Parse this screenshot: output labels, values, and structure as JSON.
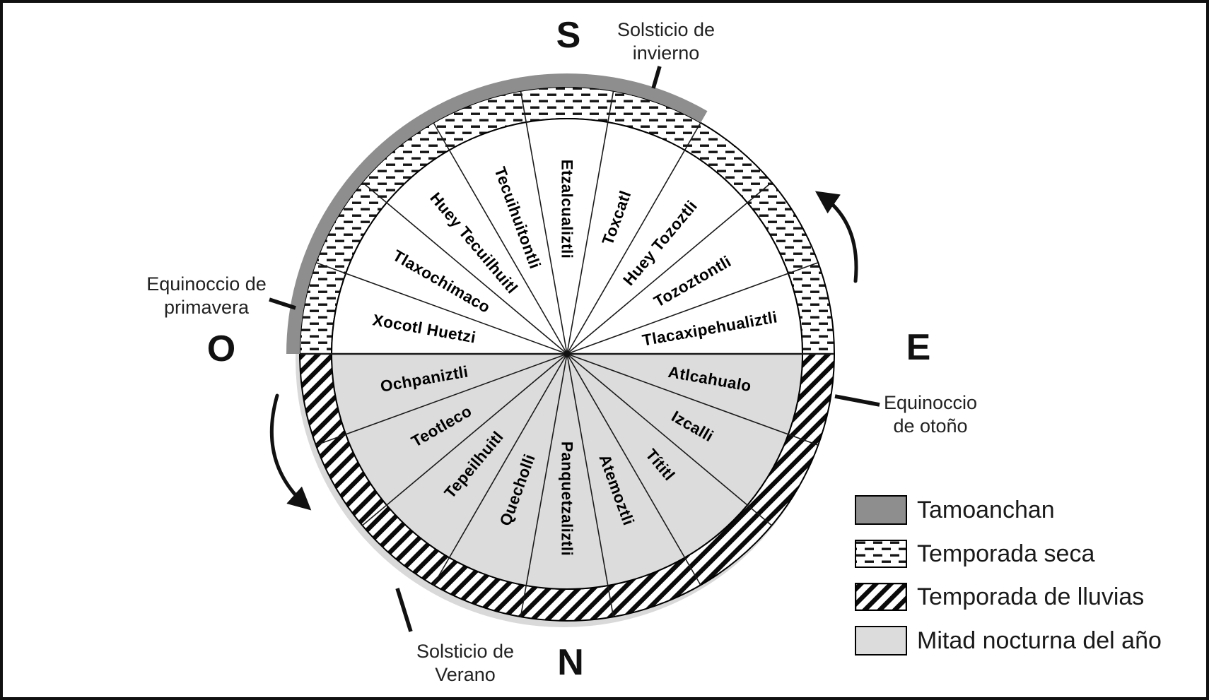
{
  "diagram": {
    "title_hint": "Aztec xiuhpohualli month wheel",
    "cardinals": {
      "top": "S",
      "right": "E",
      "bottom": "N",
      "left": "O"
    },
    "annotations": {
      "winter_solstice": [
        "Solsticio de",
        "invierno"
      ],
      "spring_equinox": [
        "Equinoccio de",
        "primavera"
      ],
      "autumn_equinox": [
        "Equinoccio",
        "de otoño"
      ],
      "summer_solstice": [
        "Solsticio de",
        "Verano"
      ]
    },
    "months": [
      {
        "name": "Tlacaxipehualiztli",
        "angle": 10
      },
      {
        "name": "Tozoztontli",
        "angle": 30
      },
      {
        "name": "Huey Tozoztli",
        "angle": 50
      },
      {
        "name": "Toxcatl",
        "angle": 70
      },
      {
        "name": "Etzalcualiztli",
        "angle": 90
      },
      {
        "name": "Tecuihuitontli",
        "angle": 110
      },
      {
        "name": "Huey Tecuilhuitl",
        "angle": 130
      },
      {
        "name": "Tlaxochimaco",
        "angle": 150
      },
      {
        "name": "Xocotl Huetzi",
        "angle": 170
      },
      {
        "name": "Ochpaniztli",
        "angle": 190
      },
      {
        "name": "Teotleco",
        "angle": 210
      },
      {
        "name": "Tepeilhuitl",
        "angle": 230
      },
      {
        "name": "Quecholli",
        "angle": 250
      },
      {
        "name": "Panquetzaliztli",
        "angle": 270
      },
      {
        "name": "Atemoztli",
        "angle": 290
      },
      {
        "name": "Títitl",
        "angle": 310
      },
      {
        "name": "Izcalli",
        "angle": 330
      },
      {
        "name": "Atlcahualo",
        "angle": 350
      }
    ]
  },
  "legend": {
    "items": [
      {
        "label": "Tamoanchan",
        "swatch": "tamoanchan-solid-gray"
      },
      {
        "label": "Temporada seca",
        "swatch": "dashed-pattern"
      },
      {
        "label": "Temporada de lluvias",
        "swatch": "diagonal-hatch"
      },
      {
        "label": "Mitad nocturna del año",
        "swatch": "light-gray"
      }
    ]
  },
  "colors": {
    "tamoanchan": "#8e8e8e",
    "night_half": "#dcdcdc",
    "ink": "#000000"
  }
}
